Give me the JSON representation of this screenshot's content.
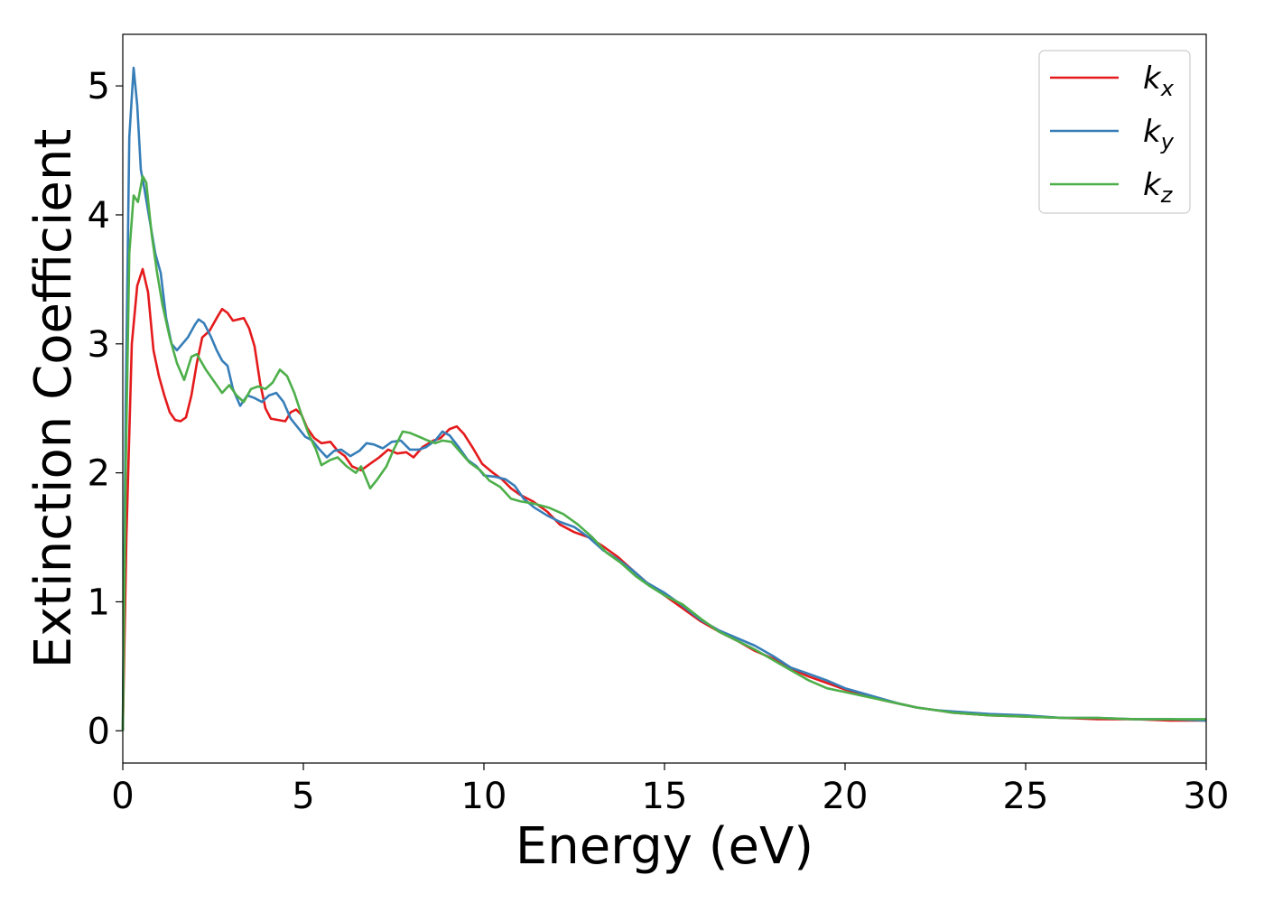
{
  "chart_data": {
    "type": "line",
    "xlabel": "Energy (eV)",
    "ylabel": "Extinction Coefficient",
    "xlim": [
      0,
      30
    ],
    "ylim": [
      -0.25,
      5.4
    ],
    "x_ticks": [
      0,
      5,
      10,
      15,
      20,
      25,
      30
    ],
    "y_ticks": [
      0,
      1,
      2,
      3,
      4,
      5
    ],
    "grid": false,
    "legend_position": "top-right",
    "series": [
      {
        "name": "k",
        "subscript": "x",
        "color": "#e41a1c",
        "points": [
          [
            0,
            0
          ],
          [
            0.1,
            1.5
          ],
          [
            0.25,
            3.0
          ],
          [
            0.4,
            3.45
          ],
          [
            0.55,
            3.58
          ],
          [
            0.7,
            3.4
          ],
          [
            0.85,
            2.95
          ],
          [
            1.0,
            2.75
          ],
          [
            1.15,
            2.6
          ],
          [
            1.3,
            2.47
          ],
          [
            1.45,
            2.41
          ],
          [
            1.6,
            2.4
          ],
          [
            1.75,
            2.43
          ],
          [
            1.9,
            2.6
          ],
          [
            2.05,
            2.85
          ],
          [
            2.2,
            3.05
          ],
          [
            2.4,
            3.1
          ],
          [
            2.6,
            3.2
          ],
          [
            2.75,
            3.27
          ],
          [
            2.9,
            3.24
          ],
          [
            3.05,
            3.18
          ],
          [
            3.2,
            3.19
          ],
          [
            3.35,
            3.2
          ],
          [
            3.5,
            3.12
          ],
          [
            3.65,
            2.98
          ],
          [
            3.8,
            2.7
          ],
          [
            3.95,
            2.5
          ],
          [
            4.1,
            2.42
          ],
          [
            4.3,
            2.41
          ],
          [
            4.5,
            2.4
          ],
          [
            4.65,
            2.47
          ],
          [
            4.8,
            2.49
          ],
          [
            4.95,
            2.45
          ],
          [
            5.1,
            2.35
          ],
          [
            5.3,
            2.27
          ],
          [
            5.5,
            2.23
          ],
          [
            5.75,
            2.24
          ],
          [
            5.95,
            2.17
          ],
          [
            6.15,
            2.13
          ],
          [
            6.35,
            2.05
          ],
          [
            6.6,
            2.02
          ],
          [
            6.85,
            2.07
          ],
          [
            7.1,
            2.12
          ],
          [
            7.35,
            2.18
          ],
          [
            7.6,
            2.15
          ],
          [
            7.85,
            2.16
          ],
          [
            8.05,
            2.12
          ],
          [
            8.3,
            2.2
          ],
          [
            8.6,
            2.25
          ],
          [
            8.8,
            2.27
          ],
          [
            9.05,
            2.34
          ],
          [
            9.25,
            2.36
          ],
          [
            9.45,
            2.3
          ],
          [
            9.7,
            2.19
          ],
          [
            9.95,
            2.07
          ],
          [
            10.25,
            2.0
          ],
          [
            10.5,
            1.95
          ],
          [
            10.75,
            1.88
          ],
          [
            11.0,
            1.83
          ],
          [
            11.35,
            1.78
          ],
          [
            11.75,
            1.7
          ],
          [
            12.1,
            1.6
          ],
          [
            12.5,
            1.54
          ],
          [
            12.9,
            1.5
          ],
          [
            13.3,
            1.43
          ],
          [
            13.7,
            1.35
          ],
          [
            14.1,
            1.25
          ],
          [
            14.5,
            1.15
          ],
          [
            15.0,
            1.05
          ],
          [
            15.5,
            0.95
          ],
          [
            16.0,
            0.85
          ],
          [
            16.5,
            0.77
          ],
          [
            17.0,
            0.7
          ],
          [
            17.5,
            0.62
          ],
          [
            18.0,
            0.56
          ],
          [
            18.5,
            0.48
          ],
          [
            19.0,
            0.42
          ],
          [
            19.5,
            0.37
          ],
          [
            20.0,
            0.32
          ],
          [
            20.5,
            0.28
          ],
          [
            21.0,
            0.24
          ],
          [
            21.5,
            0.21
          ],
          [
            22.0,
            0.18
          ],
          [
            22.5,
            0.16
          ],
          [
            23.0,
            0.14
          ],
          [
            24.0,
            0.12
          ],
          [
            25.0,
            0.11
          ],
          [
            26.0,
            0.1
          ],
          [
            27.0,
            0.09
          ],
          [
            28.0,
            0.09
          ],
          [
            29.0,
            0.08
          ],
          [
            30.0,
            0.08
          ]
        ]
      },
      {
        "name": "k",
        "subscript": "y",
        "color": "#377eb8",
        "points": [
          [
            0,
            0
          ],
          [
            0.08,
            2.5
          ],
          [
            0.18,
            4.6
          ],
          [
            0.3,
            5.14
          ],
          [
            0.4,
            4.85
          ],
          [
            0.5,
            4.35
          ],
          [
            0.6,
            4.2
          ],
          [
            0.75,
            3.95
          ],
          [
            0.9,
            3.7
          ],
          [
            1.05,
            3.55
          ],
          [
            1.2,
            3.2
          ],
          [
            1.35,
            3.0
          ],
          [
            1.5,
            2.95
          ],
          [
            1.65,
            3.0
          ],
          [
            1.8,
            3.05
          ],
          [
            2.0,
            3.15
          ],
          [
            2.1,
            3.19
          ],
          [
            2.25,
            3.16
          ],
          [
            2.45,
            3.05
          ],
          [
            2.6,
            2.95
          ],
          [
            2.75,
            2.87
          ],
          [
            2.9,
            2.83
          ],
          [
            3.05,
            2.65
          ],
          [
            3.25,
            2.52
          ],
          [
            3.45,
            2.6
          ],
          [
            3.65,
            2.58
          ],
          [
            3.85,
            2.55
          ],
          [
            4.05,
            2.6
          ],
          [
            4.25,
            2.62
          ],
          [
            4.45,
            2.55
          ],
          [
            4.65,
            2.42
          ],
          [
            4.85,
            2.35
          ],
          [
            5.05,
            2.28
          ],
          [
            5.25,
            2.25
          ],
          [
            5.45,
            2.18
          ],
          [
            5.65,
            2.12
          ],
          [
            5.85,
            2.17
          ],
          [
            6.05,
            2.18
          ],
          [
            6.3,
            2.13
          ],
          [
            6.55,
            2.17
          ],
          [
            6.75,
            2.23
          ],
          [
            6.95,
            2.22
          ],
          [
            7.2,
            2.19
          ],
          [
            7.45,
            2.24
          ],
          [
            7.7,
            2.25
          ],
          [
            7.95,
            2.18
          ],
          [
            8.2,
            2.18
          ],
          [
            8.4,
            2.2
          ],
          [
            8.65,
            2.25
          ],
          [
            8.85,
            2.32
          ],
          [
            9.05,
            2.29
          ],
          [
            9.3,
            2.2
          ],
          [
            9.55,
            2.1
          ],
          [
            9.8,
            2.05
          ],
          [
            10.0,
            1.98
          ],
          [
            10.3,
            1.97
          ],
          [
            10.6,
            1.95
          ],
          [
            10.85,
            1.9
          ],
          [
            11.1,
            1.8
          ],
          [
            11.4,
            1.73
          ],
          [
            11.75,
            1.67
          ],
          [
            12.1,
            1.62
          ],
          [
            12.5,
            1.58
          ],
          [
            12.9,
            1.5
          ],
          [
            13.3,
            1.4
          ],
          [
            13.7,
            1.33
          ],
          [
            14.1,
            1.25
          ],
          [
            14.5,
            1.15
          ],
          [
            15.0,
            1.07
          ],
          [
            15.5,
            0.97
          ],
          [
            16.0,
            0.86
          ],
          [
            16.5,
            0.78
          ],
          [
            17.0,
            0.72
          ],
          [
            17.5,
            0.66
          ],
          [
            18.0,
            0.58
          ],
          [
            18.5,
            0.49
          ],
          [
            19.0,
            0.44
          ],
          [
            19.5,
            0.39
          ],
          [
            20.0,
            0.33
          ],
          [
            20.5,
            0.29
          ],
          [
            21.0,
            0.25
          ],
          [
            21.5,
            0.21
          ],
          [
            22.0,
            0.18
          ],
          [
            22.5,
            0.16
          ],
          [
            23.0,
            0.15
          ],
          [
            24.0,
            0.13
          ],
          [
            25.0,
            0.12
          ],
          [
            26.0,
            0.1
          ],
          [
            27.0,
            0.1
          ],
          [
            28.0,
            0.09
          ],
          [
            29.0,
            0.09
          ],
          [
            30.0,
            0.08
          ]
        ]
      },
      {
        "name": "k",
        "subscript": "z",
        "color": "#4daf4a",
        "points": [
          [
            0,
            0
          ],
          [
            0.08,
            2.0
          ],
          [
            0.18,
            3.7
          ],
          [
            0.3,
            4.15
          ],
          [
            0.42,
            4.1
          ],
          [
            0.55,
            4.3
          ],
          [
            0.65,
            4.25
          ],
          [
            0.8,
            3.85
          ],
          [
            0.95,
            3.55
          ],
          [
            1.1,
            3.3
          ],
          [
            1.3,
            3.05
          ],
          [
            1.5,
            2.85
          ],
          [
            1.7,
            2.72
          ],
          [
            1.9,
            2.9
          ],
          [
            2.05,
            2.92
          ],
          [
            2.3,
            2.8
          ],
          [
            2.55,
            2.7
          ],
          [
            2.75,
            2.62
          ],
          [
            2.95,
            2.68
          ],
          [
            3.15,
            2.6
          ],
          [
            3.35,
            2.55
          ],
          [
            3.55,
            2.65
          ],
          [
            3.75,
            2.67
          ],
          [
            3.95,
            2.65
          ],
          [
            4.15,
            2.7
          ],
          [
            4.35,
            2.8
          ],
          [
            4.55,
            2.75
          ],
          [
            4.75,
            2.62
          ],
          [
            4.95,
            2.45
          ],
          [
            5.15,
            2.3
          ],
          [
            5.35,
            2.18
          ],
          [
            5.5,
            2.06
          ],
          [
            5.75,
            2.1
          ],
          [
            5.95,
            2.12
          ],
          [
            6.2,
            2.05
          ],
          [
            6.45,
            2.0
          ],
          [
            6.6,
            2.05
          ],
          [
            6.85,
            1.88
          ],
          [
            7.05,
            1.95
          ],
          [
            7.3,
            2.05
          ],
          [
            7.5,
            2.18
          ],
          [
            7.75,
            2.32
          ],
          [
            7.95,
            2.31
          ],
          [
            8.2,
            2.28
          ],
          [
            8.45,
            2.25
          ],
          [
            8.65,
            2.23
          ],
          [
            8.85,
            2.25
          ],
          [
            9.1,
            2.24
          ],
          [
            9.35,
            2.16
          ],
          [
            9.6,
            2.08
          ],
          [
            9.9,
            2.02
          ],
          [
            10.15,
            1.94
          ],
          [
            10.45,
            1.89
          ],
          [
            10.75,
            1.8
          ],
          [
            11.0,
            1.78
          ],
          [
            11.4,
            1.76
          ],
          [
            11.8,
            1.73
          ],
          [
            12.2,
            1.68
          ],
          [
            12.6,
            1.6
          ],
          [
            13.0,
            1.5
          ],
          [
            13.4,
            1.38
          ],
          [
            13.8,
            1.3
          ],
          [
            14.2,
            1.2
          ],
          [
            14.6,
            1.12
          ],
          [
            15.0,
            1.05
          ],
          [
            15.5,
            0.98
          ],
          [
            16.0,
            0.87
          ],
          [
            16.5,
            0.77
          ],
          [
            17.0,
            0.7
          ],
          [
            17.5,
            0.63
          ],
          [
            18.0,
            0.55
          ],
          [
            18.5,
            0.47
          ],
          [
            19.0,
            0.39
          ],
          [
            19.5,
            0.33
          ],
          [
            20.0,
            0.3
          ],
          [
            20.5,
            0.27
          ],
          [
            21.0,
            0.24
          ],
          [
            21.5,
            0.21
          ],
          [
            22.0,
            0.18
          ],
          [
            22.5,
            0.16
          ],
          [
            23.0,
            0.14
          ],
          [
            24.0,
            0.12
          ],
          [
            25.0,
            0.11
          ],
          [
            26.0,
            0.1
          ],
          [
            27.0,
            0.1
          ],
          [
            28.0,
            0.09
          ],
          [
            29.0,
            0.09
          ],
          [
            30.0,
            0.09
          ]
        ]
      }
    ]
  }
}
